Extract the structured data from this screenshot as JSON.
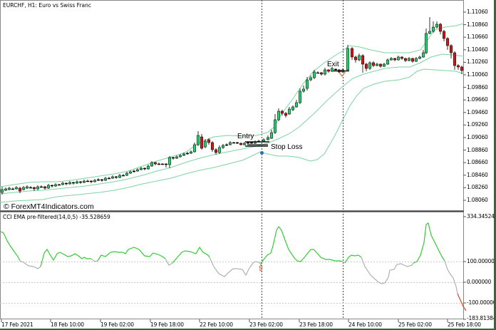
{
  "chart": {
    "symbol_title": "EURCHF, H1:  Euro vs Swiss Franc",
    "watermark": "© ForexMT4Indicators.com",
    "price_axis": [
      "1.11060",
      "1.10860",
      "1.10660",
      "1.10460",
      "1.10260",
      "1.10060",
      "1.09860",
      "1.09660",
      "1.09460",
      "1.09260",
      "1.09060",
      "1.08860",
      "1.08660",
      "1.08460",
      "1.08260",
      "1.08060"
    ],
    "annotations": {
      "entry": "Entry",
      "stop_loss": "Stop Loss",
      "exit": "Exit"
    }
  },
  "indicator": {
    "title": "CCI EMA pre-filtered(14,0,5) -35.528659",
    "axis": {
      "max": "334.345243",
      "upper": "100.000000",
      "zero": "0.000000",
      "lower": "-100.00000",
      "min": "-183.81384"
    }
  },
  "time_axis": [
    "17 Feb 2021",
    "18 Feb 10:00",
    "19 Feb 02:00",
    "19 Feb 18:00",
    "22 Feb 10:00",
    "23 Feb 02:00",
    "23 Feb 18:00",
    "24 Feb 10:00",
    "25 Feb 02:00",
    "25 Feb 18:00"
  ],
  "colors": {
    "bull_candle": "#2ecc71",
    "bear_candle": "#cc1a1a",
    "bands": "#7ed3a3",
    "cci_up": "#33cc33",
    "cci_neutral": "#b0b0b0",
    "cci_down": "#e0452a",
    "entry_marker": "#1f6fd1",
    "exit_marker": "#e06a3a"
  }
}
